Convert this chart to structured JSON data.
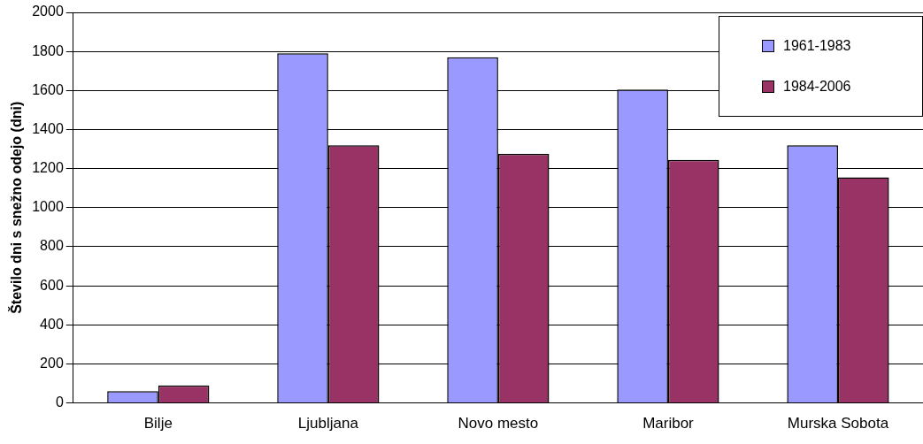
{
  "chart_data": {
    "type": "bar",
    "ylabel": "Število dni s snežno odejo (dni)",
    "categories": [
      "Bilje",
      "Ljubljana",
      "Novo mesto",
      "Maribor",
      "Murska Sobota"
    ],
    "series": [
      {
        "name": "1961-1983",
        "color": "#9999ff",
        "values": [
          60,
          1790,
          1770,
          1605,
          1320
        ]
      },
      {
        "name": "1984-2006",
        "color": "#993366",
        "values": [
          90,
          1320,
          1275,
          1245,
          1155
        ]
      }
    ],
    "ylim": [
      0,
      2000
    ],
    "yticks": [
      0,
      200,
      400,
      600,
      800,
      1000,
      1200,
      1400,
      1600,
      1800,
      2000
    ],
    "grid": "y",
    "legend": "top right"
  }
}
